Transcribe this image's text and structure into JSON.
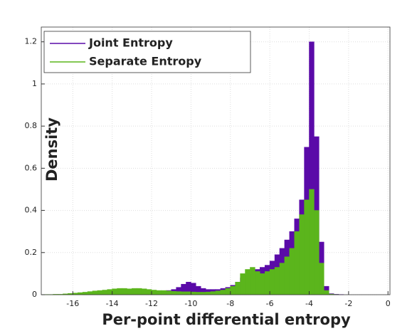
{
  "chart_data": {
    "type": "histogram",
    "xlabel": "Per-point differential entropy",
    "ylabel": "Density",
    "bins": [
      -17.5,
      -17.25,
      -17,
      -16.75,
      -16.5,
      -16.25,
      -16,
      -15.75,
      -15.5,
      -15.25,
      -15,
      -14.75,
      -14.5,
      -14.25,
      -14,
      -13.75,
      -13.5,
      -13.25,
      -13,
      -12.75,
      -12.5,
      -12.25,
      -12,
      -11.75,
      -11.5,
      -11.25,
      -11,
      -10.75,
      -10.5,
      -10.25,
      -10,
      -9.75,
      -9.5,
      -9.25,
      -9,
      -8.75,
      -8.5,
      -8.25,
      -8,
      -7.75,
      -7.5,
      -7.25,
      -7,
      -6.75,
      -6.5,
      -6.25,
      -6,
      -5.75,
      -5.5,
      -5.25,
      -5,
      -4.75,
      -4.5,
      -4.25,
      -4,
      -3.75,
      -3.5,
      -3.25,
      -3,
      -2.75,
      -2.5,
      -2.25,
      -2
    ],
    "series": [
      {
        "name": "Joint Entropy",
        "color": "#5a0aa8",
        "values": [
          0,
          0,
          0,
          0,
          0,
          0,
          0,
          0,
          0.001,
          0.001,
          0.002,
          0.002,
          0.003,
          0.003,
          0.004,
          0.005,
          0.006,
          0.006,
          0.007,
          0.007,
          0.008,
          0.008,
          0.01,
          0.012,
          0.015,
          0.02,
          0.025,
          0.035,
          0.05,
          0.06,
          0.055,
          0.04,
          0.03,
          0.025,
          0.025,
          0.025,
          0.03,
          0.035,
          0.045,
          0.06,
          0.08,
          0.09,
          0.1,
          0.12,
          0.13,
          0.14,
          0.16,
          0.19,
          0.22,
          0.26,
          0.3,
          0.36,
          0.45,
          0.7,
          1.2,
          0.75,
          0.25,
          0.04,
          0.005,
          0.002,
          0.001,
          0
        ]
      },
      {
        "name": "Separate Entropy",
        "color": "#5bb51c",
        "values": [
          0.001,
          0.001,
          0.002,
          0.002,
          0.004,
          0.006,
          0.008,
          0.01,
          0.012,
          0.015,
          0.018,
          0.02,
          0.022,
          0.025,
          0.028,
          0.03,
          0.03,
          0.028,
          0.03,
          0.03,
          0.028,
          0.025,
          0.022,
          0.02,
          0.02,
          0.018,
          0.016,
          0.015,
          0.014,
          0.014,
          0.013,
          0.012,
          0.012,
          0.013,
          0.015,
          0.018,
          0.022,
          0.03,
          0.04,
          0.06,
          0.1,
          0.12,
          0.13,
          0.11,
          0.1,
          0.11,
          0.12,
          0.13,
          0.15,
          0.18,
          0.22,
          0.3,
          0.38,
          0.45,
          0.5,
          0.4,
          0.15,
          0.02,
          0.003,
          0.001,
          0,
          0
        ]
      }
    ],
    "xlim": [
      -17.6,
      0.1
    ],
    "ylim": [
      0,
      1.27
    ],
    "xticks": [
      -16,
      -14,
      -12,
      -10,
      -8,
      -6,
      -4,
      -2,
      0
    ],
    "yticks": [
      0,
      0.2,
      0.4,
      0.6,
      0.8,
      1,
      1.2
    ],
    "grid": true,
    "legend": "upper left"
  }
}
